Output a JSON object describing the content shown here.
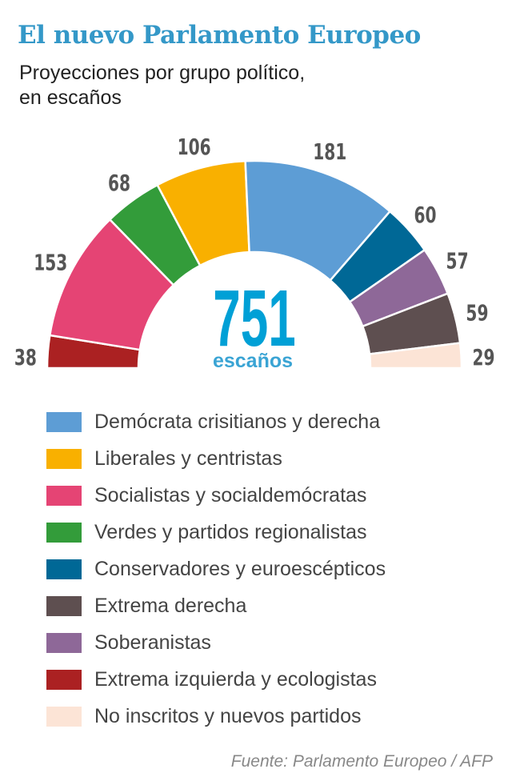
{
  "title": "El nuevo Parlamento Europeo",
  "subtitle": "Proyecciones por grupo político, en escaños",
  "source": "Fuente: Parlamento Europeo / AFP",
  "chart_data": {
    "type": "pie",
    "subtype": "semicircle-donut",
    "total": "751",
    "total_label": "escaños",
    "segments": [
      {
        "name": "Extrema izquierda y ecologistas",
        "value": 38,
        "color": "#ab2122"
      },
      {
        "name": "Socialistas y socialdemócratas",
        "value": 153,
        "color": "#e54474"
      },
      {
        "name": "Verdes y partidos regionalistas",
        "value": 68,
        "color": "#339c3a"
      },
      {
        "name": "Liberales y centristas",
        "value": 106,
        "color": "#f9b000"
      },
      {
        "name": "Demócrata cristianos y derecha",
        "value": 181,
        "color": "#5d9dd5"
      },
      {
        "name": "Conservadores y euroescépticos",
        "value": 60,
        "color": "#006896"
      },
      {
        "name": "Soberanistas",
        "value": 57,
        "color": "#8e6898"
      },
      {
        "name": "Extrema derecha",
        "value": 59,
        "color": "#5e4f50"
      },
      {
        "name": "No inscritos y nuevos partidos",
        "value": 29,
        "color": "#fce4d6"
      }
    ],
    "legend": [
      {
        "label": "Demócrata crisitianos y derecha",
        "color": "#5d9dd5"
      },
      {
        "label": "Liberales y centristas",
        "color": "#f9b000"
      },
      {
        "label": "Socialistas y socialdemócratas",
        "color": "#e54474"
      },
      {
        "label": "Verdes y partidos regionalistas",
        "color": "#339c3a"
      },
      {
        "label": "Conservadores y euroescépticos",
        "color": "#006896"
      },
      {
        "label": "Extrema derecha",
        "color": "#5e4f50"
      },
      {
        "label": "Soberanistas",
        "color": "#8e6898"
      },
      {
        "label": "Extrema izquierda y ecologistas",
        "color": "#ab2122"
      },
      {
        "label": "No inscritos y nuevos partidos",
        "color": "#fce4d6"
      }
    ],
    "legend_position": "bottom"
  }
}
